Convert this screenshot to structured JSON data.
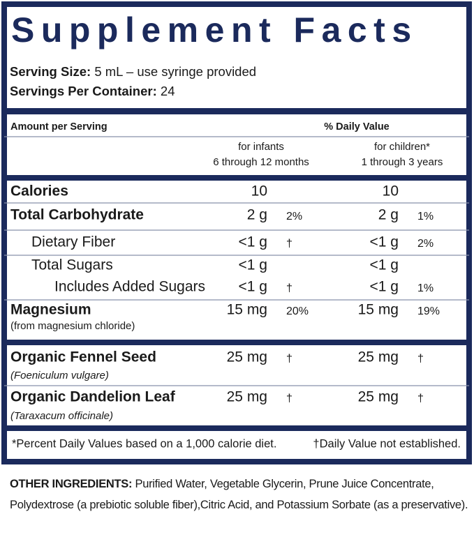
{
  "title": "Supplement Facts",
  "serving_size": {
    "label": "Serving Size:",
    "value": "5 mL – use syringe provided"
  },
  "servings_per_container": {
    "label": "Servings Per Container:",
    "value": "24"
  },
  "table": {
    "header": {
      "amount": "Amount per Serving",
      "daily_value": "% Daily Value"
    },
    "columns": [
      {
        "line1": "for infants",
        "line2": "6 through 12 months"
      },
      {
        "line1": "for children*",
        "line2": "1 through 3 years"
      }
    ],
    "rows": [
      {
        "name": "Calories",
        "infants": {
          "amount": "10"
        },
        "children": {
          "amount": "10"
        }
      },
      {
        "name": "Total Carbohydrate",
        "infants": {
          "amount": "2 g",
          "dv": "2%"
        },
        "children": {
          "amount": "2 g",
          "dv": "1%"
        }
      },
      {
        "name": "Dietary Fiber",
        "infants": {
          "amount": "<1 g",
          "dv": "†"
        },
        "children": {
          "amount": "<1 g",
          "dv": "2%"
        }
      },
      {
        "name": "Total Sugars",
        "infants": {
          "amount": "<1 g"
        },
        "children": {
          "amount": "<1 g"
        }
      },
      {
        "name": "Includes Added Sugars",
        "infants": {
          "amount": "<1 g",
          "dv": "†"
        },
        "children": {
          "amount": "<1 g",
          "dv": "1%"
        }
      },
      {
        "name": "Magnesium",
        "sub": "(from magnesium chloride)",
        "infants": {
          "amount": "15 mg",
          "dv": "20%"
        },
        "children": {
          "amount": "15 mg",
          "dv": "19%"
        }
      },
      {
        "name": "Organic Fennel Seed",
        "sub": "(Foeniculum vulgare)",
        "infants": {
          "amount": "25 mg",
          "dv": "†"
        },
        "children": {
          "amount": "25 mg",
          "dv": "†"
        }
      },
      {
        "name": "Organic Dandelion Leaf",
        "sub": "(Taraxacum officinale)",
        "infants": {
          "amount": "25 mg",
          "dv": "†"
        },
        "children": {
          "amount": "25 mg",
          "dv": "†"
        }
      }
    ]
  },
  "footnotes": {
    "percent": "*Percent Daily Values based on a 1,000 calorie diet.",
    "dagger": "†Daily Value not established."
  },
  "other_ingredients": {
    "label": "OTHER INGREDIENTS:",
    "text": "Purified Water, Vegetable Glycerin, Prune Juice Concentrate, Polydextrose (a prebiotic soluble fiber),Citric Acid, and Potassium Sorbate (as a preservative)."
  }
}
